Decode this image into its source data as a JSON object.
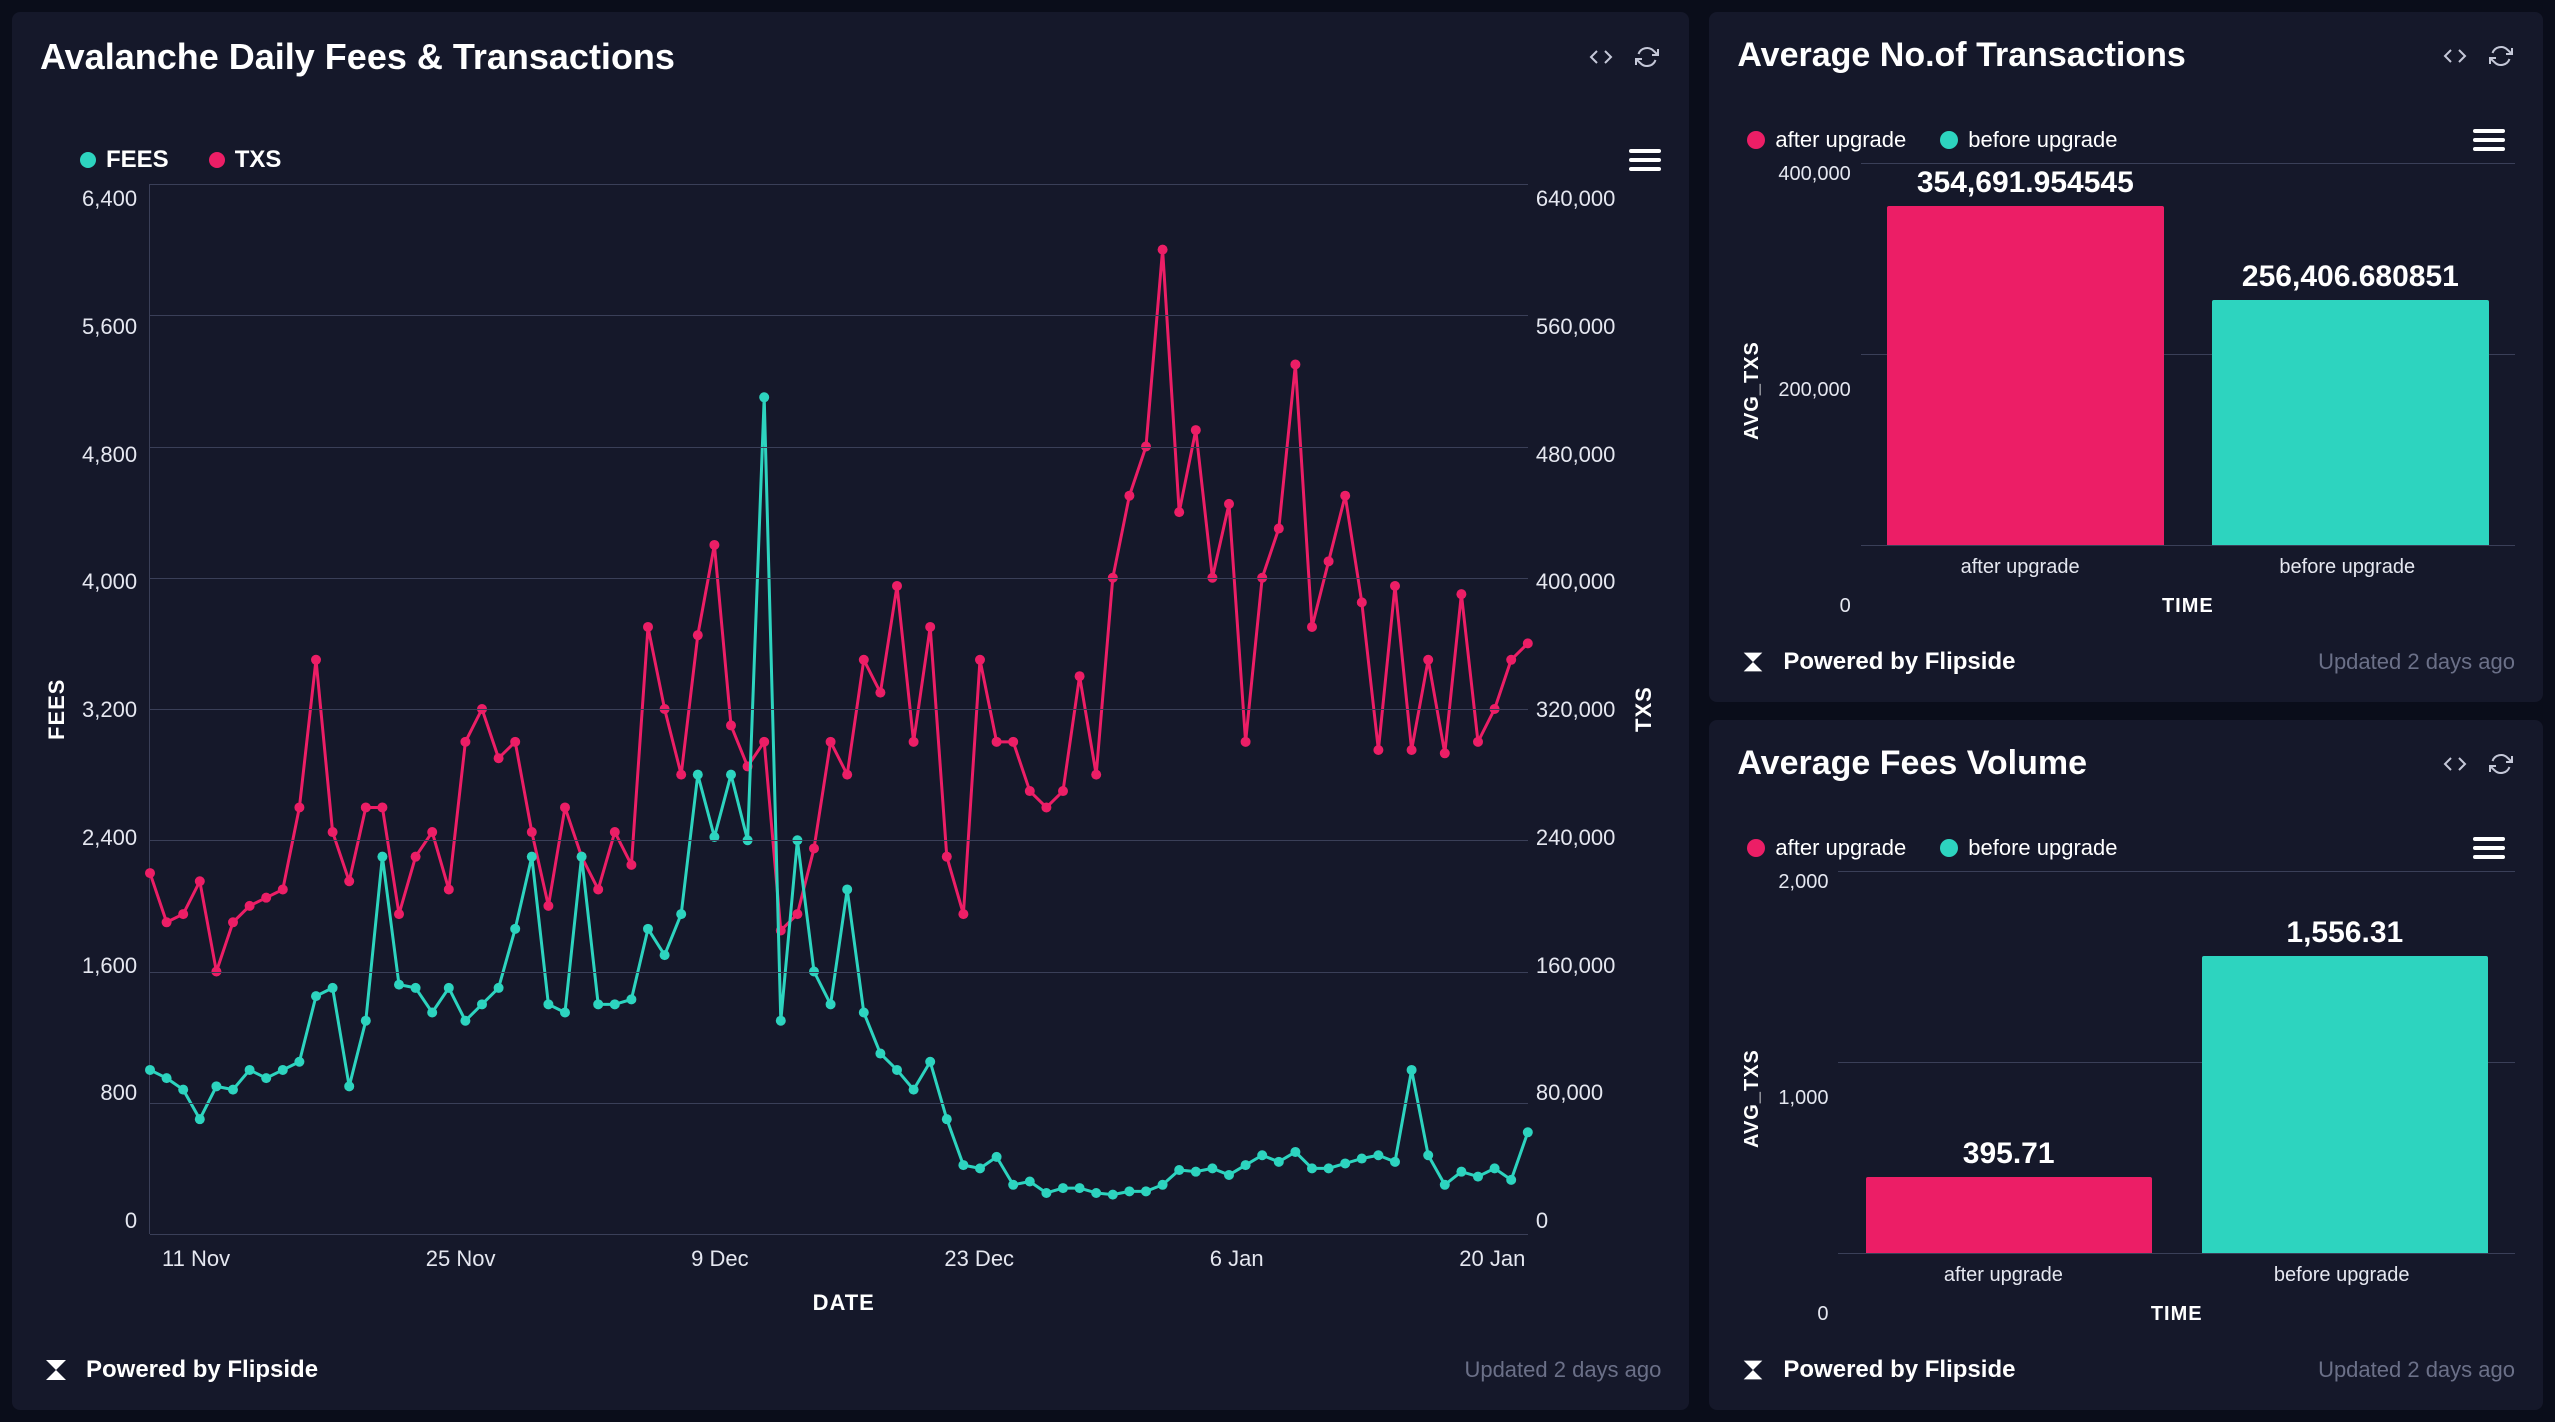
{
  "colors": {
    "teal": "#2dd4bf",
    "pink": "#ec1e66",
    "grid": "#3a3f58",
    "panel_bg": "#15182a",
    "page_bg": "#0a0d1a",
    "text": "#ffffff",
    "muted": "#6b7088"
  },
  "main_chart": {
    "title": "Avalanche Daily Fees & Transactions",
    "type": "line",
    "legend": [
      {
        "label": "FEES",
        "color": "#2dd4bf"
      },
      {
        "label": "TXS",
        "color": "#ec1e66"
      }
    ],
    "x_axis_label": "DATE",
    "y_left_label": "FEES",
    "y_right_label": "TXS",
    "y_left_ticks": [
      "6,400",
      "5,600",
      "4,800",
      "4,000",
      "3,200",
      "2,400",
      "1,600",
      "800",
      "0"
    ],
    "y_right_ticks": [
      "640,000",
      "560,000",
      "480,000",
      "400,000",
      "320,000",
      "240,000",
      "160,000",
      "80,000",
      "0"
    ],
    "x_ticks": [
      "11 Nov",
      "25 Nov",
      "9 Dec",
      "23 Dec",
      "6 Jan",
      "20 Jan"
    ],
    "y_left_lim": [
      0,
      6400
    ],
    "y_right_lim": [
      0,
      640000
    ],
    "marker_radius": 5,
    "line_width": 3,
    "fees": [
      1000,
      950,
      880,
      700,
      900,
      880,
      1000,
      950,
      1000,
      1050,
      1450,
      1500,
      900,
      1300,
      2300,
      1520,
      1500,
      1350,
      1500,
      1300,
      1400,
      1500,
      1860,
      2300,
      1400,
      1350,
      2300,
      1400,
      1400,
      1430,
      1860,
      1700,
      1950,
      2800,
      2420,
      2800,
      2400,
      5100,
      1300,
      2400,
      1600,
      1400,
      2100,
      1350,
      1100,
      1000,
      880,
      1050,
      700,
      420,
      400,
      470,
      300,
      320,
      250,
      280,
      280,
      250,
      240,
      260,
      260,
      300,
      390,
      380,
      400,
      360,
      420,
      480,
      440,
      500,
      400,
      400,
      430,
      460,
      480,
      440,
      1000,
      480,
      300,
      380,
      350,
      400,
      330,
      620
    ],
    "txs": [
      220000,
      190000,
      195000,
      215000,
      160000,
      190000,
      200000,
      205000,
      210000,
      260000,
      350000,
      245000,
      215000,
      260000,
      260000,
      195000,
      230000,
      245000,
      210000,
      300000,
      320000,
      290000,
      300000,
      245000,
      200000,
      260000,
      230000,
      210000,
      245000,
      225000,
      370000,
      320000,
      280000,
      365000,
      420000,
      310000,
      285000,
      300000,
      185000,
      195000,
      235000,
      300000,
      280000,
      350000,
      330000,
      395000,
      300000,
      370000,
      230000,
      195000,
      350000,
      300000,
      300000,
      270000,
      260000,
      270000,
      340000,
      280000,
      400000,
      450000,
      480000,
      600000,
      440000,
      490000,
      400000,
      445000,
      300000,
      400000,
      430000,
      530000,
      370000,
      410000,
      450000,
      385000,
      295000,
      395000,
      295000,
      350000,
      293000,
      390000,
      300000,
      320000,
      350000,
      360000
    ],
    "footer_powered": "Powered by Flipside",
    "footer_updated": "Updated 2 days ago"
  },
  "avg_txs_chart": {
    "title": "Average No.of Transactions",
    "type": "bar",
    "x_axis_label": "TIME",
    "y_axis_label": "AVG_TXS",
    "legend": [
      {
        "label": "after upgrade",
        "color": "#ec1e66"
      },
      {
        "label": "before upgrade",
        "color": "#2dd4bf"
      }
    ],
    "y_ticks": [
      "400,000",
      "200,000",
      "0"
    ],
    "y_lim": [
      0,
      400000
    ],
    "bars": [
      {
        "category": "after upgrade",
        "value": 354691.954545,
        "label": "354,691.954545",
        "color": "#ec1e66"
      },
      {
        "category": "before upgrade",
        "value": 256406.680851,
        "label": "256,406.680851",
        "color": "#2dd4bf"
      }
    ],
    "footer_powered": "Powered by Flipside",
    "footer_updated": "Updated 2 days ago"
  },
  "avg_fees_chart": {
    "title": "Average Fees Volume",
    "type": "bar",
    "x_axis_label": "TIME",
    "y_axis_label": "AVG_TXS",
    "legend": [
      {
        "label": "after upgrade",
        "color": "#ec1e66"
      },
      {
        "label": "before upgrade",
        "color": "#2dd4bf"
      }
    ],
    "y_ticks": [
      "2,000",
      "1,000",
      "0"
    ],
    "y_lim": [
      0,
      2000
    ],
    "bars": [
      {
        "category": "after upgrade",
        "value": 395.71,
        "label": "395.71",
        "color": "#ec1e66"
      },
      {
        "category": "before upgrade",
        "value": 1556.31,
        "label": "1,556.31",
        "color": "#2dd4bf"
      }
    ],
    "footer_powered": "Powered by Flipside",
    "footer_updated": "Updated 2 days ago"
  }
}
